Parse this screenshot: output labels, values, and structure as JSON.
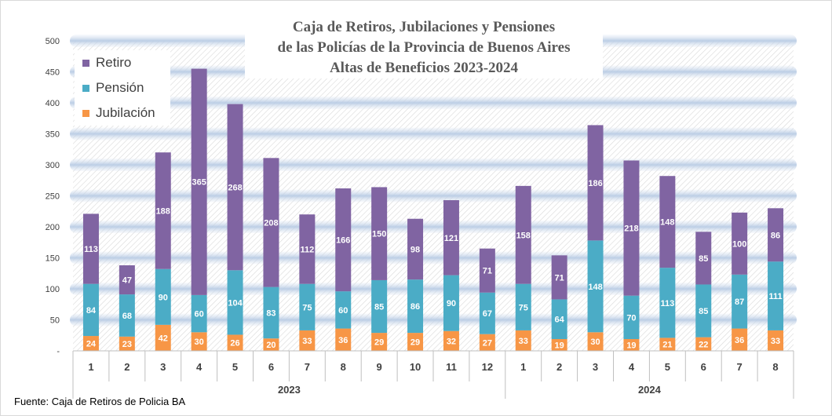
{
  "chart_data": {
    "type": "bar",
    "stacked": true,
    "title_lines": [
      "Caja de Retiros, Jubilaciones y Pensiones",
      "de las Policías de la Provincia de Buenos Aires",
      "Altas de Beneficios 2023-2024"
    ],
    "categories": [
      "1",
      "2",
      "3",
      "4",
      "5",
      "6",
      "7",
      "8",
      "9",
      "10",
      "11",
      "12",
      "1",
      "2",
      "3",
      "4",
      "5",
      "6",
      "7",
      "8"
    ],
    "groups": [
      {
        "label": "2023",
        "count": 12
      },
      {
        "label": "2024",
        "count": 8
      }
    ],
    "series": [
      {
        "name": "Jubilación",
        "color": "#f79646",
        "values": [
          24,
          23,
          42,
          30,
          26,
          20,
          33,
          36,
          29,
          29,
          32,
          27,
          33,
          19,
          30,
          19,
          21,
          22,
          36,
          33
        ]
      },
      {
        "name": "Pensión",
        "color": "#4bacc6",
        "values": [
          84,
          68,
          90,
          60,
          104,
          83,
          75,
          60,
          85,
          86,
          90,
          67,
          75,
          64,
          148,
          70,
          113,
          85,
          87,
          111
        ]
      },
      {
        "name": "Retiro",
        "color": "#8064a2",
        "values": [
          113,
          47,
          188,
          365,
          268,
          208,
          112,
          166,
          150,
          98,
          121,
          71,
          158,
          71,
          186,
          218,
          148,
          85,
          100,
          86
        ]
      }
    ],
    "legend_order": [
      "Retiro",
      "Pensión",
      "Jubilación"
    ],
    "legend_position": "top-left",
    "ylim": [
      0,
      500
    ],
    "yticks": [
      "-",
      "50",
      "100",
      "150",
      "200",
      "250",
      "300",
      "350",
      "400",
      "450",
      "500"
    ],
    "grid": true
  },
  "source": "Fuente: Caja de Retiros de Policia BA"
}
